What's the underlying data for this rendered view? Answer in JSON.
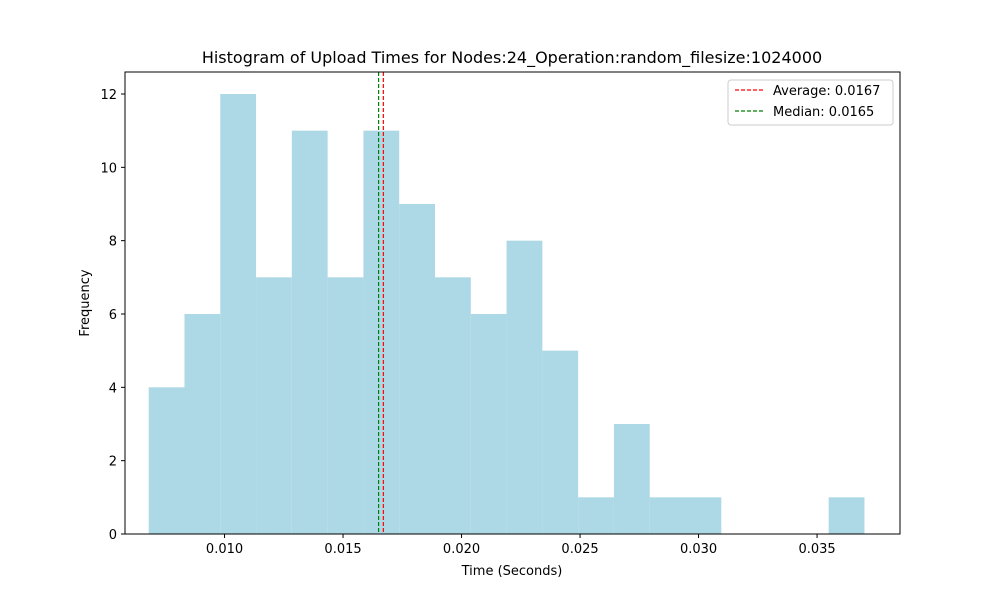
{
  "chart_data": {
    "type": "bar",
    "title": "Histogram of Upload Times for Nodes:24_Operation:random_filesize:1024000",
    "xlabel": "Time (Seconds)",
    "ylabel": "Frequency",
    "xlim": [
      0.0058,
      0.0385
    ],
    "ylim": [
      0,
      12.6
    ],
    "bin_start": 0.0068,
    "bin_width": 0.00151,
    "counts": [
      4,
      6,
      12,
      7,
      11,
      7,
      11,
      9,
      7,
      6,
      8,
      5,
      1,
      3,
      1,
      1,
      0,
      0,
      0,
      1
    ],
    "bar_color": "#add8e6",
    "xticks": [
      {
        "value": 0.01,
        "label": "0.010"
      },
      {
        "value": 0.015,
        "label": "0.015"
      },
      {
        "value": 0.02,
        "label": "0.020"
      },
      {
        "value": 0.025,
        "label": "0.025"
      },
      {
        "value": 0.03,
        "label": "0.030"
      },
      {
        "value": 0.035,
        "label": "0.035"
      }
    ],
    "yticks": [
      {
        "value": 0,
        "label": "0"
      },
      {
        "value": 2,
        "label": "2"
      },
      {
        "value": 4,
        "label": "4"
      },
      {
        "value": 6,
        "label": "6"
      },
      {
        "value": 8,
        "label": "8"
      },
      {
        "value": 10,
        "label": "10"
      },
      {
        "value": 12,
        "label": "12"
      }
    ],
    "reference_lines": [
      {
        "label": "Average: 0.0167",
        "value": 0.0167,
        "color": "#ff0000"
      },
      {
        "label": "Median: 0.0165",
        "value": 0.0165,
        "color": "#008000"
      }
    ],
    "legend_position": "top-right",
    "grid": false
  }
}
